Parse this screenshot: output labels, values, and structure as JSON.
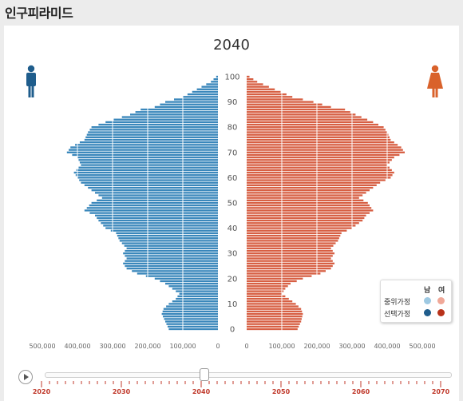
{
  "page": {
    "title": "인구피라미드"
  },
  "colors": {
    "male": "#3a87bb",
    "female": "#d75f43",
    "male_median": "#9ec9e2",
    "female_median": "#f0a898",
    "male_selected": "#1f5d8c",
    "female_selected": "#b8321a",
    "male_icon": "#1f5d8c",
    "female_icon": "#d9622b"
  },
  "icons": {
    "male": "male-person-icon",
    "female": "female-person-icon",
    "play": "play-icon"
  },
  "legend": {
    "male_header": "남",
    "female_header": "여",
    "rows": [
      "중위가정",
      "선택가정"
    ]
  },
  "timeline": {
    "current": "2040",
    "ticks": [
      "2020",
      "2030",
      "2040",
      "2050",
      "2060",
      "2070"
    ]
  },
  "chart_data": {
    "type": "bar",
    "title": "2040",
    "age_ticks": [
      "100",
      "90",
      "80",
      "70",
      "60",
      "50",
      "40",
      "30",
      "20",
      "10",
      "0"
    ],
    "male_axis_ticks": [
      "500,000",
      "400,000",
      "300,000",
      "200,000",
      "100,000",
      "0"
    ],
    "female_axis_ticks": [
      "0",
      "100,000",
      "200,000",
      "300,000",
      "400,000",
      "500,000"
    ],
    "xlim": [
      0,
      500000
    ],
    "ylim": [
      0,
      100
    ],
    "age_anchors": [
      0,
      3,
      6,
      8,
      10,
      12,
      14,
      16,
      18,
      20,
      22,
      24,
      26,
      28,
      30,
      32,
      35,
      38,
      40,
      43,
      45,
      47,
      50,
      52,
      55,
      58,
      60,
      62,
      65,
      68,
      70,
      72,
      75,
      78,
      80,
      82,
      85,
      87,
      88,
      90,
      92,
      95,
      98,
      100
    ],
    "male_anchors": [
      140000,
      150000,
      160000,
      155000,
      140000,
      120000,
      110000,
      130000,
      150000,
      180000,
      230000,
      260000,
      270000,
      260000,
      270000,
      260000,
      280000,
      290000,
      320000,
      340000,
      350000,
      380000,
      360000,
      330000,
      360000,
      390000,
      400000,
      410000,
      390000,
      400000,
      430000,
      420000,
      380000,
      370000,
      360000,
      320000,
      250000,
      220000,
      180000,
      150000,
      100000,
      60000,
      20000,
      5000
    ],
    "female_anchors": [
      145000,
      155000,
      160000,
      155000,
      140000,
      120000,
      100000,
      110000,
      125000,
      160000,
      210000,
      240000,
      250000,
      240000,
      250000,
      240000,
      260000,
      270000,
      300000,
      330000,
      340000,
      360000,
      345000,
      320000,
      350000,
      380000,
      410000,
      420000,
      400000,
      420000,
      450000,
      440000,
      410000,
      400000,
      390000,
      360000,
      310000,
      280000,
      240000,
      190000,
      130000,
      80000,
      30000,
      8000
    ]
  }
}
